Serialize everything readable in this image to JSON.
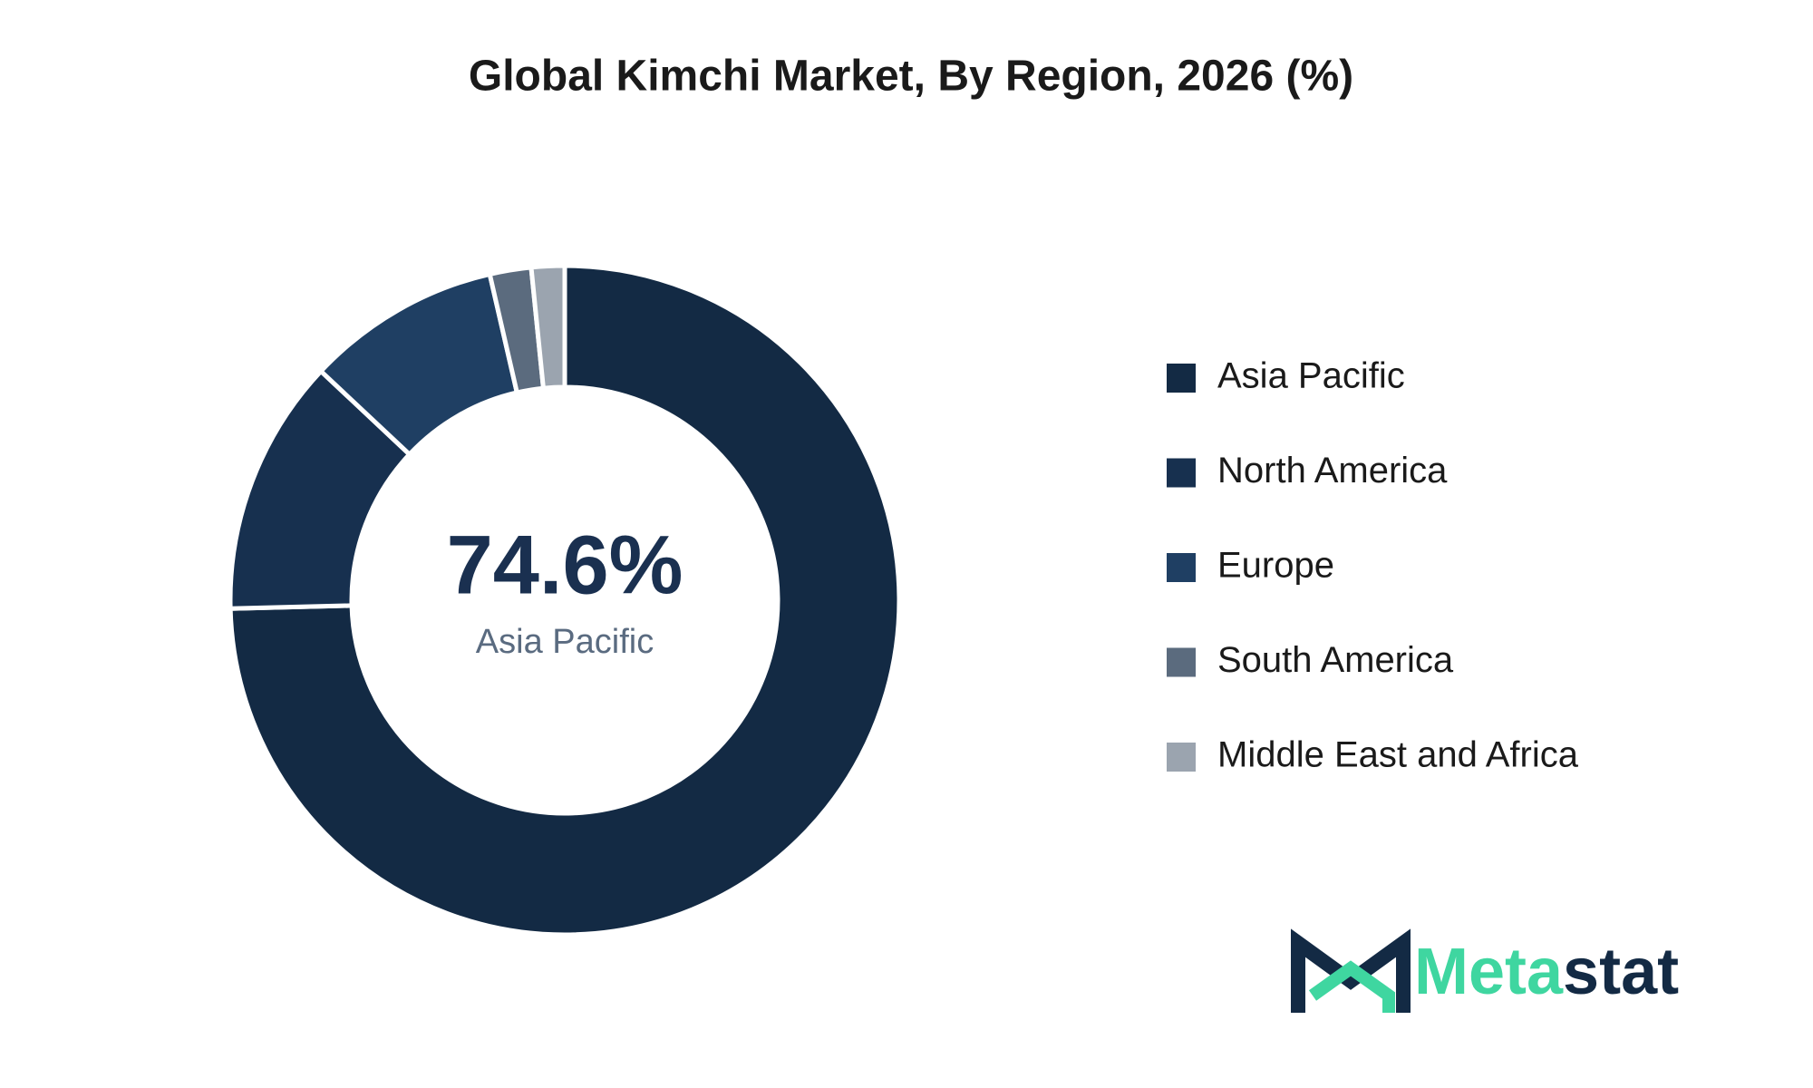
{
  "chart_data": {
    "type": "donut",
    "title": "Global Kimchi Market, By Region, 2026 (%)",
    "categories": [
      "Asia Pacific",
      "North America",
      "Europe",
      "South America",
      "Middle East and Africa"
    ],
    "values": [
      74.6,
      12.4,
      9.4,
      2.0,
      1.6
    ],
    "value_labels": [
      "74.6%",
      null,
      null,
      null,
      null
    ],
    "colors": [
      "#132a44",
      "#17304f",
      "#1f3f63",
      "#5b6b7e",
      "#9ba4af"
    ],
    "legend": "right"
  },
  "logo": {
    "parts": [
      "Meta",
      "stat"
    ],
    "colors": [
      "#3fd6a0",
      "#132a44"
    ]
  }
}
